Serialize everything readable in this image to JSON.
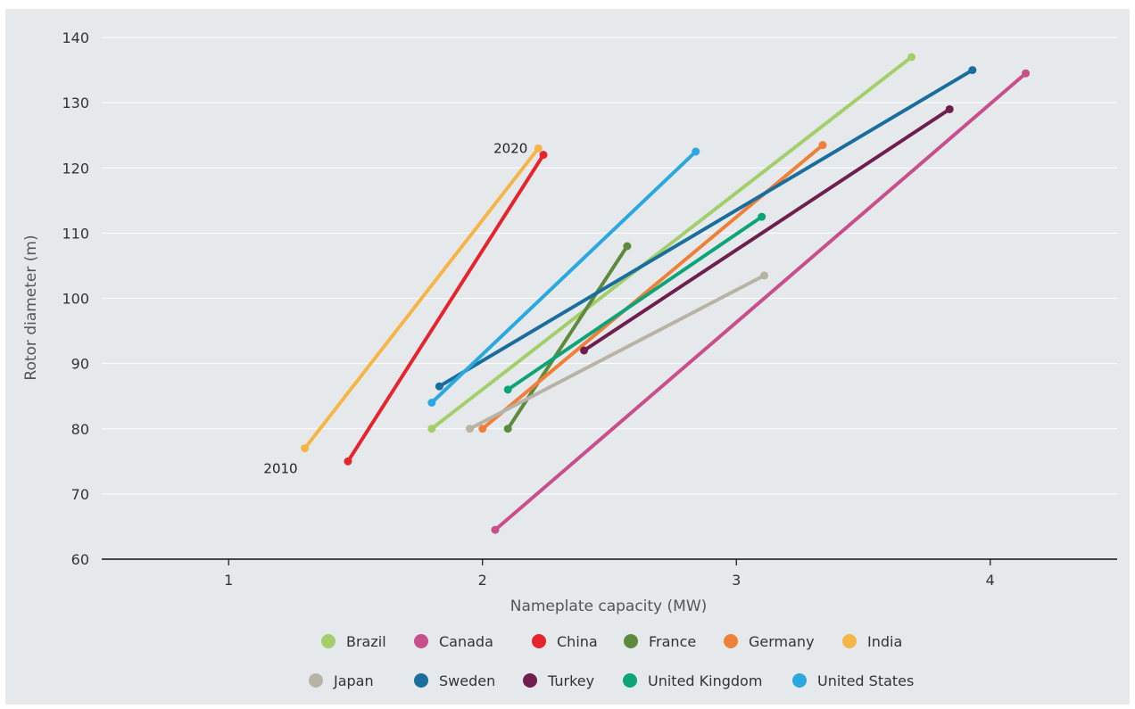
{
  "chart_data": {
    "type": "line",
    "xlabel": "Nameplate capacity (MW)",
    "ylabel": "Rotor diameter (m)",
    "xlim": [
      0.5,
      4.5
    ],
    "ylim": [
      60,
      140
    ],
    "xticks": [
      1,
      2,
      3,
      4
    ],
    "yticks": [
      60,
      70,
      80,
      90,
      100,
      110,
      120,
      130,
      140
    ],
    "grid": "horizontal",
    "legend_position": "bottom",
    "annotations": [
      {
        "text": "2010",
        "x": 1.3,
        "y": 77
      },
      {
        "text": "2020",
        "x": 2.22,
        "y": 123
      }
    ],
    "series": [
      {
        "name": "Brazil",
        "color": "#a3cf6a",
        "points": [
          [
            1.8,
            80
          ],
          [
            3.69,
            137
          ]
        ]
      },
      {
        "name": "Canada",
        "color": "#c94f8a",
        "points": [
          [
            2.05,
            64.5
          ],
          [
            4.14,
            134.5
          ]
        ]
      },
      {
        "name": "China",
        "color": "#e4252d",
        "points": [
          [
            1.47,
            75
          ],
          [
            2.24,
            122
          ]
        ]
      },
      {
        "name": "France",
        "color": "#5d8a3c",
        "points": [
          [
            2.1,
            80
          ],
          [
            2.57,
            108
          ]
        ]
      },
      {
        "name": "Germany",
        "color": "#f07f3a",
        "points": [
          [
            2.0,
            80
          ],
          [
            3.34,
            123.5
          ]
        ]
      },
      {
        "name": "India",
        "color": "#f5b547",
        "points": [
          [
            1.3,
            77
          ],
          [
            2.22,
            123
          ]
        ]
      },
      {
        "name": "Japan",
        "color": "#b8b3a5",
        "points": [
          [
            1.95,
            80
          ],
          [
            3.11,
            103.5
          ]
        ]
      },
      {
        "name": "Sweden",
        "color": "#1a6e9e",
        "points": [
          [
            1.83,
            86.5
          ],
          [
            3.93,
            135
          ]
        ]
      },
      {
        "name": "Turkey",
        "color": "#6e1f4e",
        "points": [
          [
            2.4,
            92
          ],
          [
            3.84,
            129
          ]
        ]
      },
      {
        "name": "United Kingdom",
        "color": "#0ea47a",
        "points": [
          [
            2.1,
            86
          ],
          [
            3.1,
            112.5
          ]
        ]
      },
      {
        "name": "United States",
        "color": "#2aa8df",
        "points": [
          [
            1.8,
            84
          ],
          [
            2.84,
            122.5
          ]
        ]
      }
    ]
  }
}
